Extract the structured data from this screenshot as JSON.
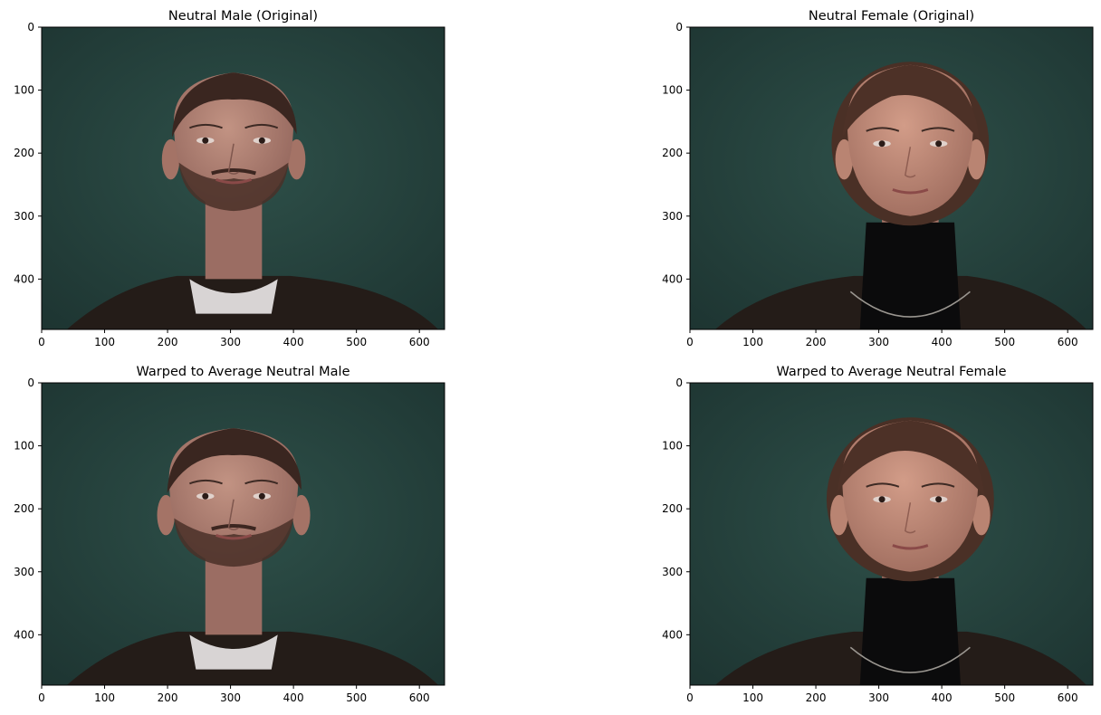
{
  "panels": [
    {
      "title": "Neutral Male (Original)",
      "subject": "male",
      "warped": false
    },
    {
      "title": "Neutral Female (Original)",
      "subject": "female",
      "warped": false
    },
    {
      "title": "Warped to Average Neutral Male",
      "subject": "male",
      "warped": true
    },
    {
      "title": "Warped to Average Neutral Female",
      "subject": "female",
      "warped": true
    }
  ],
  "x_ticks": [
    "0",
    "100",
    "200",
    "300",
    "400",
    "500",
    "600"
  ],
  "y_ticks": [
    "0",
    "100",
    "200",
    "300",
    "400"
  ],
  "image_extent": {
    "width": 640,
    "height": 480
  },
  "colors": {
    "background_wall": "#25433f",
    "skin_male": "#b48478",
    "skin_female": "#c08a78",
    "hair": "#3a2620",
    "sweater": "#241c18"
  }
}
